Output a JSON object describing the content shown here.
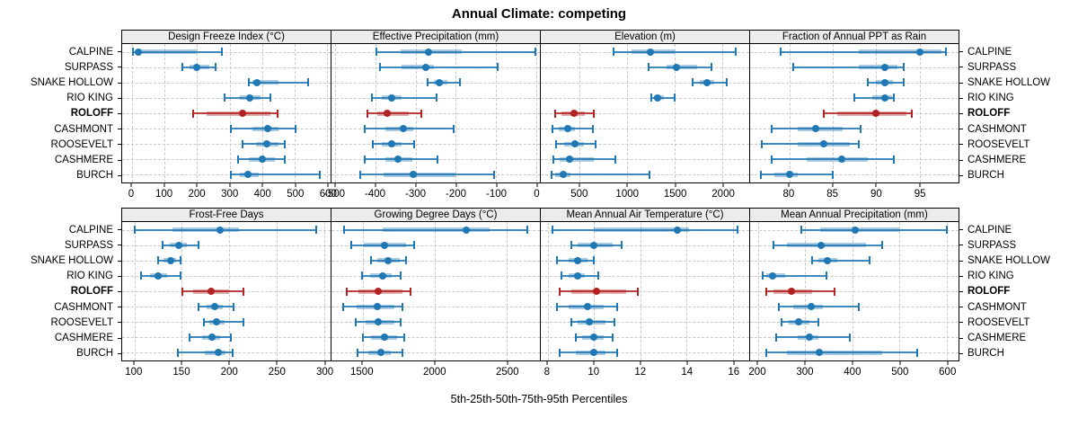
{
  "title": "Annual Climate: competing",
  "caption": "5th-25th-50th-75th-95th Percentiles",
  "colors": {
    "series": "#1f77b4",
    "series_band": "rgba(31,119,180,0.38)",
    "highlight": "#b22222",
    "highlight_band": "rgba(178,34,34,0.38)",
    "strip_bg": "#ececec",
    "grid": "#c9c9c9",
    "border": "#000000"
  },
  "stations": [
    "CALPINE",
    "SURPASS",
    "SNAKE HOLLOW",
    "RIO KING",
    "ROLOFF",
    "CASHMONT",
    "ROOSEVELT",
    "CASHMERE",
    "BURCH"
  ],
  "highlight_station": "ROLOFF",
  "chart_data": {
    "type": "dotplot",
    "subtype": "percentile-ranges",
    "percentiles": [
      "5th",
      "25th",
      "50th",
      "75th",
      "95th"
    ],
    "layout": {
      "rows": 2,
      "cols": 4,
      "grid": "dashed",
      "station_labels": "left-and-right",
      "axis_per_panel": true
    },
    "panels": [
      {
        "title": "Design Freeze Index (°C)",
        "xlim": [
          -30,
          610
        ],
        "ticks": [
          0,
          100,
          200,
          300,
          400,
          500,
          600
        ],
        "values": [
          [
            3,
            12,
            20,
            200,
            277
          ],
          [
            154,
            178,
            200,
            238,
            258
          ],
          [
            360,
            370,
            385,
            450,
            540
          ],
          [
            284,
            330,
            363,
            395,
            425
          ],
          [
            188,
            228,
            341,
            425,
            447
          ],
          [
            305,
            370,
            418,
            450,
            503
          ],
          [
            340,
            380,
            415,
            450,
            470
          ],
          [
            327,
            360,
            400,
            440,
            470
          ],
          [
            304,
            330,
            355,
            390,
            577
          ]
        ]
      },
      {
        "title": "Effective Precipitation (mm)",
        "xlim": [
          -510,
          10
        ],
        "ticks": [
          -500,
          -400,
          -300,
          -200,
          -100,
          0
        ],
        "values": [
          [
            -398,
            -337,
            -268,
            -185,
            -2
          ],
          [
            -390,
            -335,
            -275,
            -255,
            -95
          ],
          [
            -270,
            -255,
            -240,
            -220,
            -190
          ],
          [
            -410,
            -385,
            -360,
            -335,
            -247
          ],
          [
            -420,
            -395,
            -370,
            -317,
            -286
          ],
          [
            -428,
            -375,
            -330,
            -305,
            -206
          ],
          [
            -408,
            -385,
            -360,
            -335,
            -304
          ],
          [
            -426,
            -375,
            -344,
            -308,
            -246
          ],
          [
            -438,
            -380,
            -307,
            -200,
            -105
          ]
        ]
      },
      {
        "title": "Elevation (m)",
        "xlim": [
          90,
          2280
        ],
        "ticks": [
          500,
          1000,
          1500,
          2000
        ],
        "values": [
          [
            850,
            1040,
            1240,
            1500,
            2140
          ],
          [
            1220,
            1415,
            1520,
            1730,
            1880
          ],
          [
            1690,
            1760,
            1840,
            1915,
            2040
          ],
          [
            1250,
            1275,
            1315,
            1385,
            1495
          ],
          [
            245,
            305,
            437,
            555,
            650
          ],
          [
            212,
            275,
            370,
            447,
            635
          ],
          [
            250,
            337,
            453,
            540,
            665
          ],
          [
            220,
            290,
            393,
            650,
            878
          ],
          [
            203,
            245,
            330,
            400,
            1235
          ]
        ]
      },
      {
        "title": "Fraction of Annual PPT as Rain",
        "xlim": [
          75.5,
          99.5
        ],
        "ticks": [
          80,
          85,
          90,
          95
        ],
        "values": [
          [
            79,
            88,
            95,
            97.5,
            98
          ],
          [
            80.5,
            88,
            91,
            92.5,
            93.2
          ],
          [
            89,
            90,
            91,
            92,
            93.2
          ],
          [
            87.5,
            89.6,
            91,
            91.8,
            92.1
          ],
          [
            84,
            85.5,
            90,
            93.5,
            94.1
          ],
          [
            78,
            81,
            83,
            86.2,
            88.2
          ],
          [
            76.8,
            81,
            84,
            87,
            88
          ],
          [
            78,
            82,
            86,
            89.1,
            92.1
          ],
          [
            76.7,
            78.3,
            80,
            81,
            85
          ]
        ]
      },
      {
        "title": "Frost-Free Days",
        "xlim": [
          87,
          307
        ],
        "ticks": [
          100,
          150,
          200,
          250,
          300
        ],
        "values": [
          [
            100,
            140,
            190,
            210,
            292
          ],
          [
            130,
            137,
            147,
            155,
            168
          ],
          [
            125,
            131,
            138,
            144,
            149
          ],
          [
            107,
            116,
            125,
            134,
            149
          ],
          [
            151,
            162,
            181,
            200,
            215
          ],
          [
            168,
            176,
            185,
            193,
            205
          ],
          [
            173,
            179,
            187,
            195,
            215
          ],
          [
            158,
            171,
            182,
            190,
            202
          ],
          [
            146,
            174,
            188,
            196,
            204
          ]
        ]
      },
      {
        "title": "Growing Degree Days (°C)",
        "xlim": [
          1285,
          2730
        ],
        "ticks": [
          1500,
          2000,
          2500
        ],
        "values": [
          [
            1375,
            1640,
            2220,
            2380,
            2645
          ],
          [
            1425,
            1510,
            1655,
            1800,
            1860
          ],
          [
            1560,
            1605,
            1680,
            1760,
            1805
          ],
          [
            1495,
            1550,
            1640,
            1705,
            1765
          ],
          [
            1390,
            1470,
            1610,
            1780,
            1830
          ],
          [
            1365,
            1460,
            1600,
            1720,
            1780
          ],
          [
            1455,
            1520,
            1610,
            1720,
            1765
          ],
          [
            1505,
            1560,
            1655,
            1740,
            1790
          ],
          [
            1465,
            1540,
            1630,
            1695,
            1775
          ]
        ]
      },
      {
        "title": "Mean Annual Air Temperature (°C)",
        "xlim": [
          7.7,
          16.7
        ],
        "ticks": [
          8,
          10,
          12,
          14,
          16
        ],
        "values": [
          [
            8.2,
            10,
            13.6,
            14.1,
            16.2
          ],
          [
            9,
            9.3,
            10,
            10.8,
            11.2
          ],
          [
            8.4,
            8.9,
            9.3,
            9.7,
            10
          ],
          [
            8.6,
            8.9,
            9.3,
            9.6,
            10.2
          ],
          [
            8.5,
            9,
            10.1,
            11.4,
            11.9
          ],
          [
            8.4,
            8.9,
            9.7,
            10.4,
            11
          ],
          [
            9,
            9.3,
            9.8,
            10.5,
            10.9
          ],
          [
            9.2,
            9.5,
            10,
            10.4,
            10.8
          ],
          [
            8.5,
            9.2,
            10,
            10.5,
            11
          ]
        ]
      },
      {
        "title": "Mean Annual Precipitation (mm)",
        "xlim": [
          183,
          625
        ],
        "ticks": [
          200,
          300,
          400,
          500,
          600
        ],
        "values": [
          [
            292,
            331,
            405,
            500,
            600
          ],
          [
            233,
            261,
            334,
            429,
            464
          ],
          [
            314,
            328,
            347,
            368,
            437
          ],
          [
            209,
            217,
            231,
            258,
            345
          ],
          [
            217,
            233,
            270,
            315,
            363
          ],
          [
            244,
            274,
            313,
            337,
            413
          ],
          [
            250,
            265,
            285,
            309,
            327
          ],
          [
            239,
            284,
            308,
            328,
            394
          ],
          [
            218,
            261,
            329,
            464,
            537
          ]
        ]
      }
    ]
  }
}
